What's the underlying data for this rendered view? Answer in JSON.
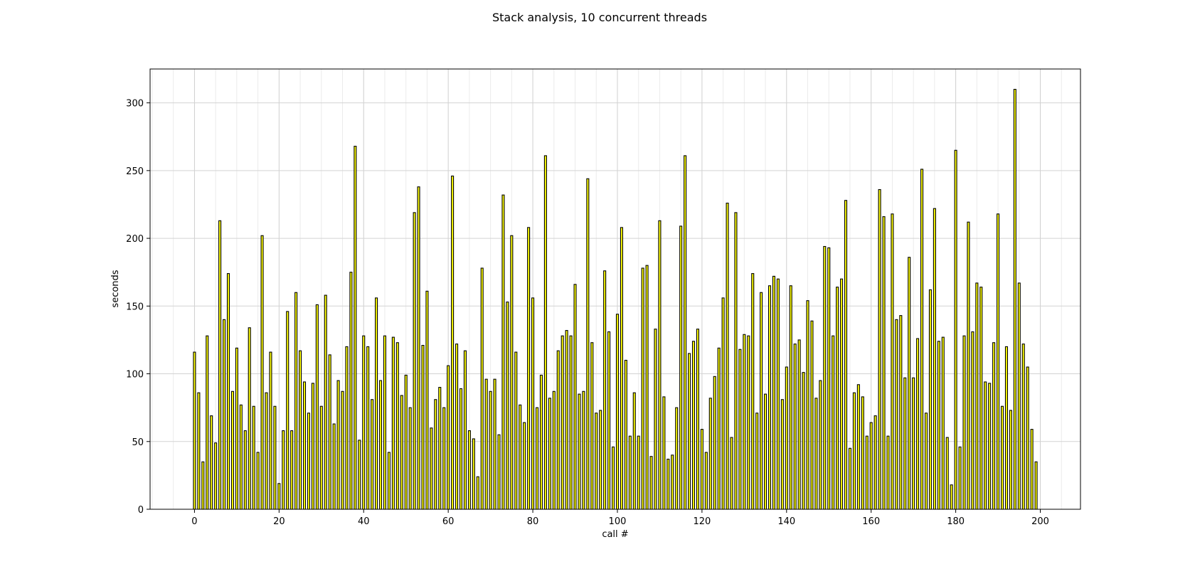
{
  "chart_data": {
    "type": "bar",
    "title": "Stack analysis, 10 concurrent threads",
    "xlabel": "call #",
    "ylabel": "seconds",
    "xlim": [
      -10.5,
      209.5
    ],
    "ylim": [
      0,
      325
    ],
    "xticks": [
      0,
      20,
      40,
      60,
      80,
      100,
      120,
      140,
      160,
      180,
      200
    ],
    "yticks": [
      0,
      50,
      100,
      150,
      200,
      250,
      300
    ],
    "grid": true,
    "bar_color": "#ffff00",
    "edge_color": "#000000",
    "x": [
      0,
      1,
      2,
      3,
      4,
      5,
      6,
      7,
      8,
      9,
      10,
      11,
      12,
      13,
      14,
      15,
      16,
      17,
      18,
      19,
      20,
      21,
      22,
      23,
      24,
      25,
      26,
      27,
      28,
      29,
      30,
      31,
      32,
      33,
      34,
      35,
      36,
      37,
      38,
      39,
      40,
      41,
      42,
      43,
      44,
      45,
      46,
      47,
      48,
      49,
      50,
      51,
      52,
      53,
      54,
      55,
      56,
      57,
      58,
      59,
      60,
      61,
      62,
      63,
      64,
      65,
      66,
      67,
      68,
      69,
      70,
      71,
      72,
      73,
      74,
      75,
      76,
      77,
      78,
      79,
      80,
      81,
      82,
      83,
      84,
      85,
      86,
      87,
      88,
      89,
      90,
      91,
      92,
      93,
      94,
      95,
      96,
      97,
      98,
      99,
      100,
      101,
      102,
      103,
      104,
      105,
      106,
      107,
      108,
      109,
      110,
      111,
      112,
      113,
      114,
      115,
      116,
      117,
      118,
      119,
      120,
      121,
      122,
      123,
      124,
      125,
      126,
      127,
      128,
      129,
      130,
      131,
      132,
      133,
      134,
      135,
      136,
      137,
      138,
      139,
      140,
      141,
      142,
      143,
      144,
      145,
      146,
      147,
      148,
      149,
      150,
      151,
      152,
      153,
      154,
      155,
      156,
      157,
      158,
      159,
      160,
      161,
      162,
      163,
      164,
      165,
      166,
      167,
      168,
      169,
      170,
      171,
      172,
      173,
      174,
      175,
      176,
      177,
      178,
      179,
      180,
      181,
      182,
      183,
      184,
      185,
      186,
      187,
      188,
      189,
      190,
      191,
      192,
      193,
      194,
      195,
      196,
      197,
      198,
      199
    ],
    "values": [
      116,
      86,
      35,
      128,
      69,
      49,
      213,
      140,
      174,
      87,
      119,
      77,
      58,
      134,
      76,
      42,
      202,
      86,
      116,
      76,
      19,
      58,
      146,
      58,
      160,
      117,
      94,
      71,
      93,
      151,
      76,
      158,
      114,
      63,
      95,
      87,
      120,
      175,
      268,
      51,
      128,
      120,
      81,
      156,
      95,
      128,
      42,
      127,
      123,
      84,
      99,
      75,
      219,
      238,
      121,
      161,
      60,
      81,
      90,
      75,
      106,
      246,
      122,
      89,
      117,
      58,
      52,
      24,
      178,
      96,
      87,
      96,
      55,
      232,
      153,
      202,
      116,
      77,
      64,
      208,
      156,
      75,
      99,
      261,
      82,
      87,
      117,
      128,
      132,
      128,
      166,
      85,
      87,
      244,
      123,
      71,
      73,
      176,
      131,
      46,
      144,
      208,
      110,
      54,
      86,
      54,
      178,
      180,
      39,
      133,
      213,
      83,
      37,
      40,
      75,
      209,
      261,
      115,
      124,
      133,
      59,
      42,
      82,
      98,
      119,
      156,
      226,
      53,
      219,
      118,
      129,
      128,
      174,
      71,
      160,
      85,
      165,
      172,
      170,
      81,
      105,
      165,
      122,
      125,
      101,
      154,
      139,
      82,
      95,
      194,
      193,
      128,
      164,
      170,
      228,
      45,
      86,
      92,
      83,
      54,
      64,
      69,
      236,
      216,
      54,
      218,
      140,
      143,
      97,
      186,
      97,
      126,
      251,
      71,
      162,
      222,
      124,
      127,
      53,
      18,
      265,
      46,
      128,
      212,
      131,
      167,
      164,
      94,
      93,
      123,
      218,
      76,
      120,
      73,
      310,
      167,
      122,
      105,
      59,
      35
    ]
  }
}
